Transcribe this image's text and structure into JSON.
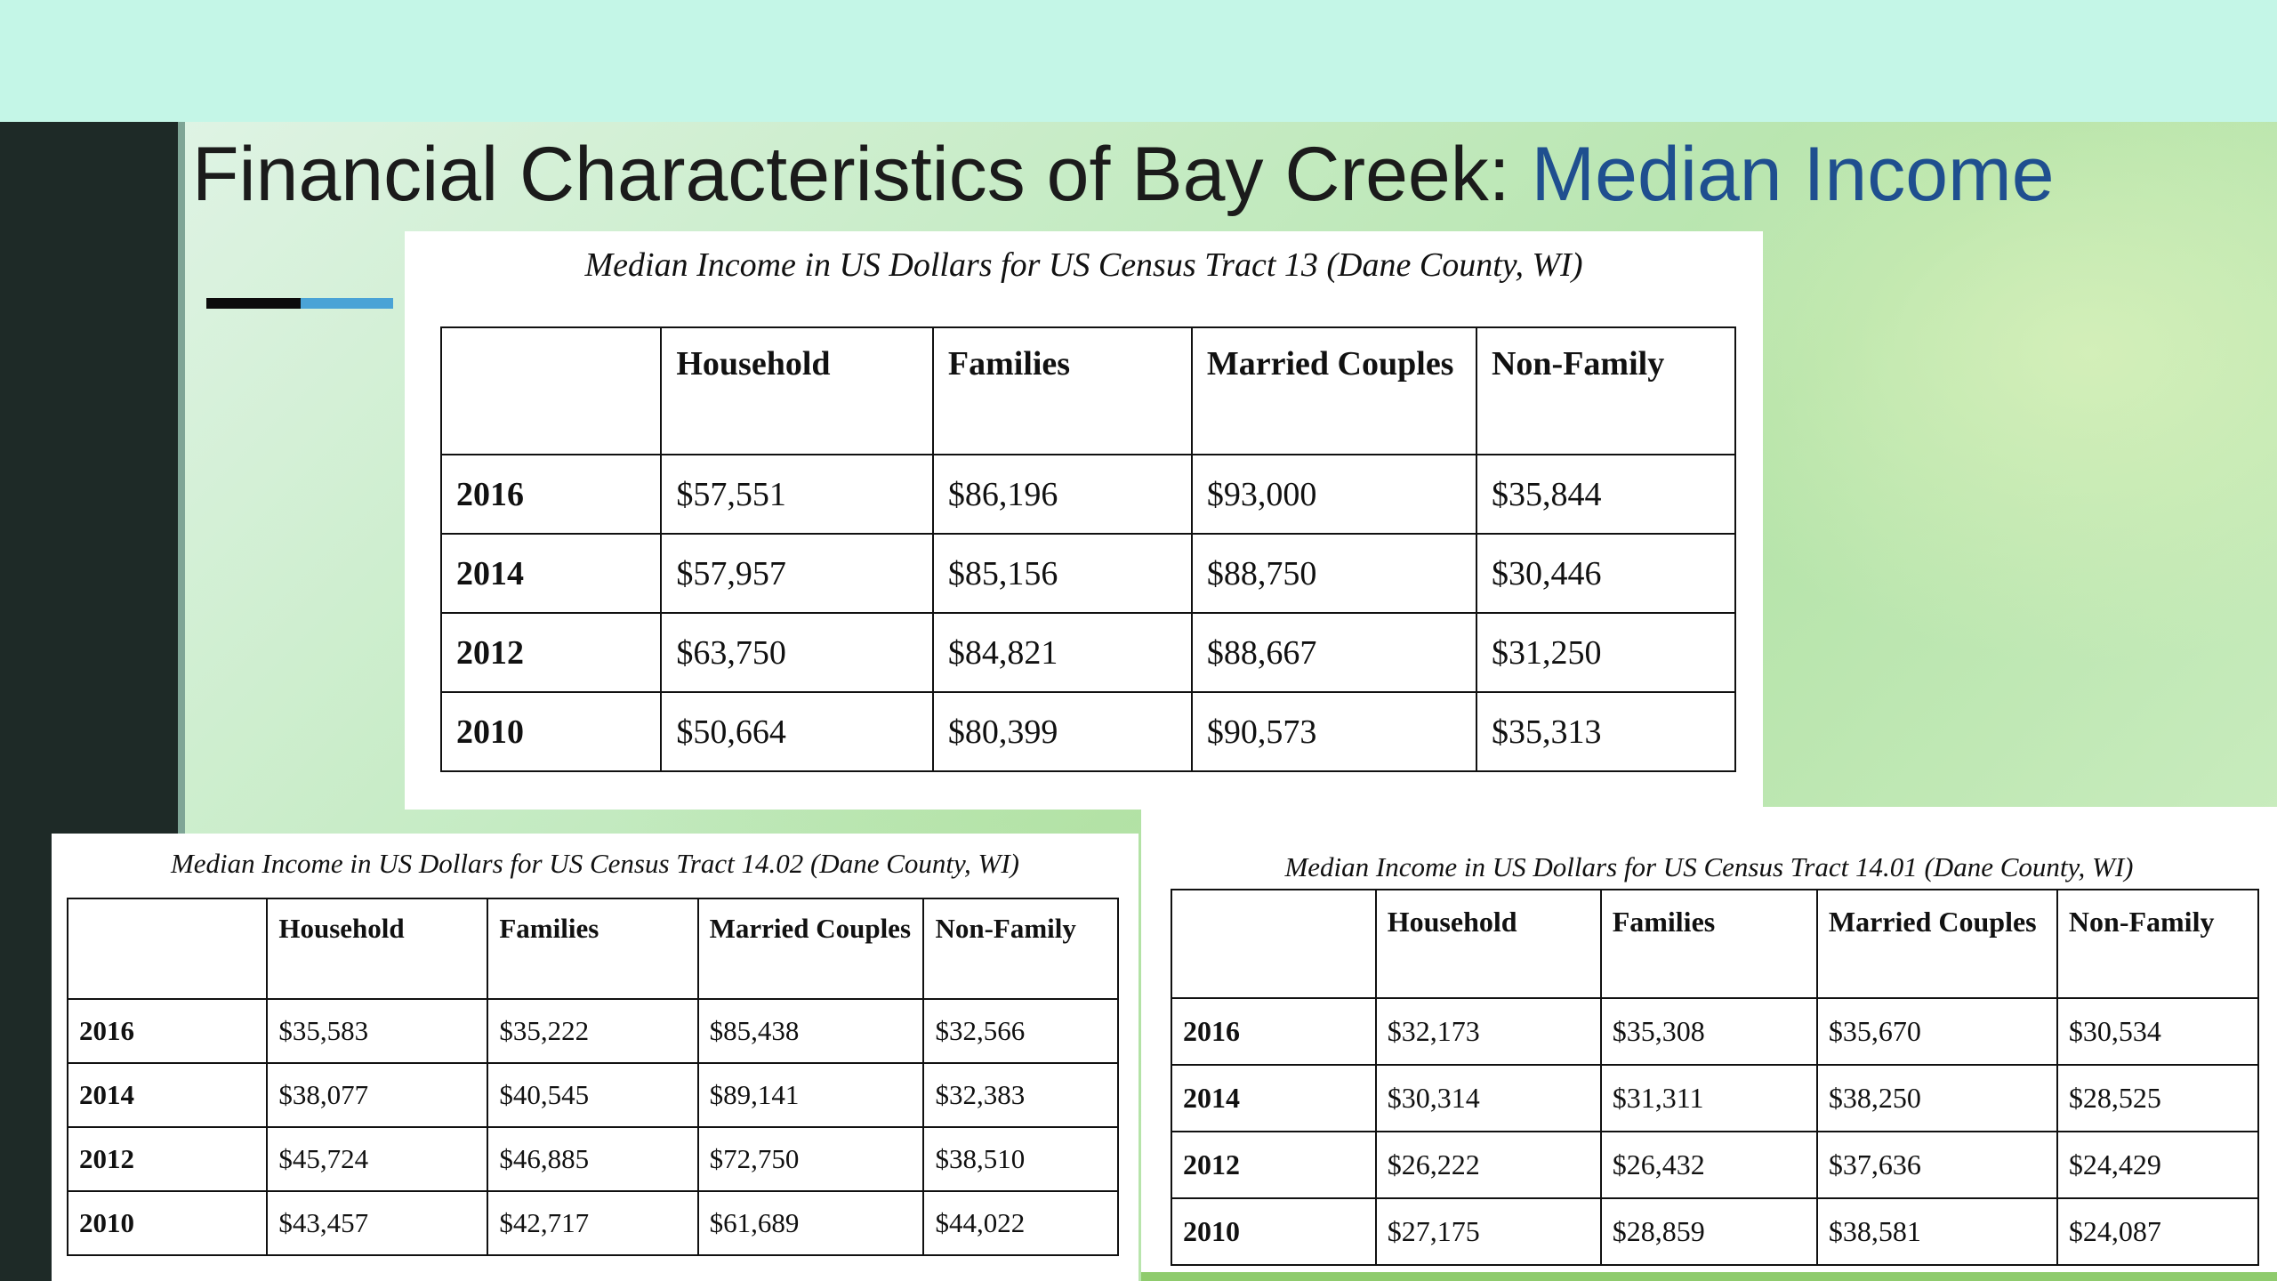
{
  "slide": {
    "title_main": "Financial Characteristics of Bay Creek: ",
    "title_highlight": "Median Income",
    "colors": {
      "title_text": "#1b1b1b",
      "title_highlight": "#1f4f8f",
      "left_bar": "#1e2a27",
      "accent_black": "#0c0c0c",
      "accent_blue": "#4aa3d6"
    }
  },
  "tables": {
    "tract13": {
      "caption": "Median Income in US Dollars for US Census Tract 13 (Dane County, WI)",
      "headers": [
        "",
        "Household",
        "Families",
        "Married Couples",
        "Non-Family"
      ],
      "rows": [
        [
          "2016",
          "$57,551",
          "$86,196",
          "$93,000",
          "$35,844"
        ],
        [
          "2014",
          "$57,957",
          "$85,156",
          "$88,750",
          "$30,446"
        ],
        [
          "2012",
          "$63,750",
          "$84,821",
          "$88,667",
          "$31,250"
        ],
        [
          "2010",
          "$50,664",
          "$80,399",
          "$90,573",
          "$35,313"
        ]
      ]
    },
    "tract1402": {
      "caption": "Median Income in US Dollars for US Census Tract 14.02 (Dane County, WI)",
      "headers": [
        "",
        "Household",
        "Families",
        "Married Couples",
        "Non-Family"
      ],
      "rows": [
        [
          "2016",
          "$35,583",
          "$35,222",
          "$85,438",
          "$32,566"
        ],
        [
          "2014",
          "$38,077",
          "$40,545",
          "$89,141",
          "$32,383"
        ],
        [
          "2012",
          "$45,724",
          "$46,885",
          "$72,750",
          "$38,510"
        ],
        [
          "2010",
          "$43,457",
          "$42,717",
          "$61,689",
          "$44,022"
        ]
      ]
    },
    "tract1401": {
      "caption": "Median Income in US Dollars for US Census Tract 14.01 (Dane County, WI)",
      "headers": [
        "",
        "Household",
        "Families",
        "Married Couples",
        "Non-Family"
      ],
      "rows": [
        [
          "2016",
          "$32,173",
          "$35,308",
          "$35,670",
          "$30,534"
        ],
        [
          "2014",
          "$30,314",
          "$31,311",
          "$38,250",
          "$28,525"
        ],
        [
          "2012",
          "$26,222",
          "$26,432",
          "$37,636",
          "$24,429"
        ],
        [
          "2010",
          "$27,175",
          "$28,859",
          "$38,581",
          "$24,087"
        ]
      ]
    }
  }
}
